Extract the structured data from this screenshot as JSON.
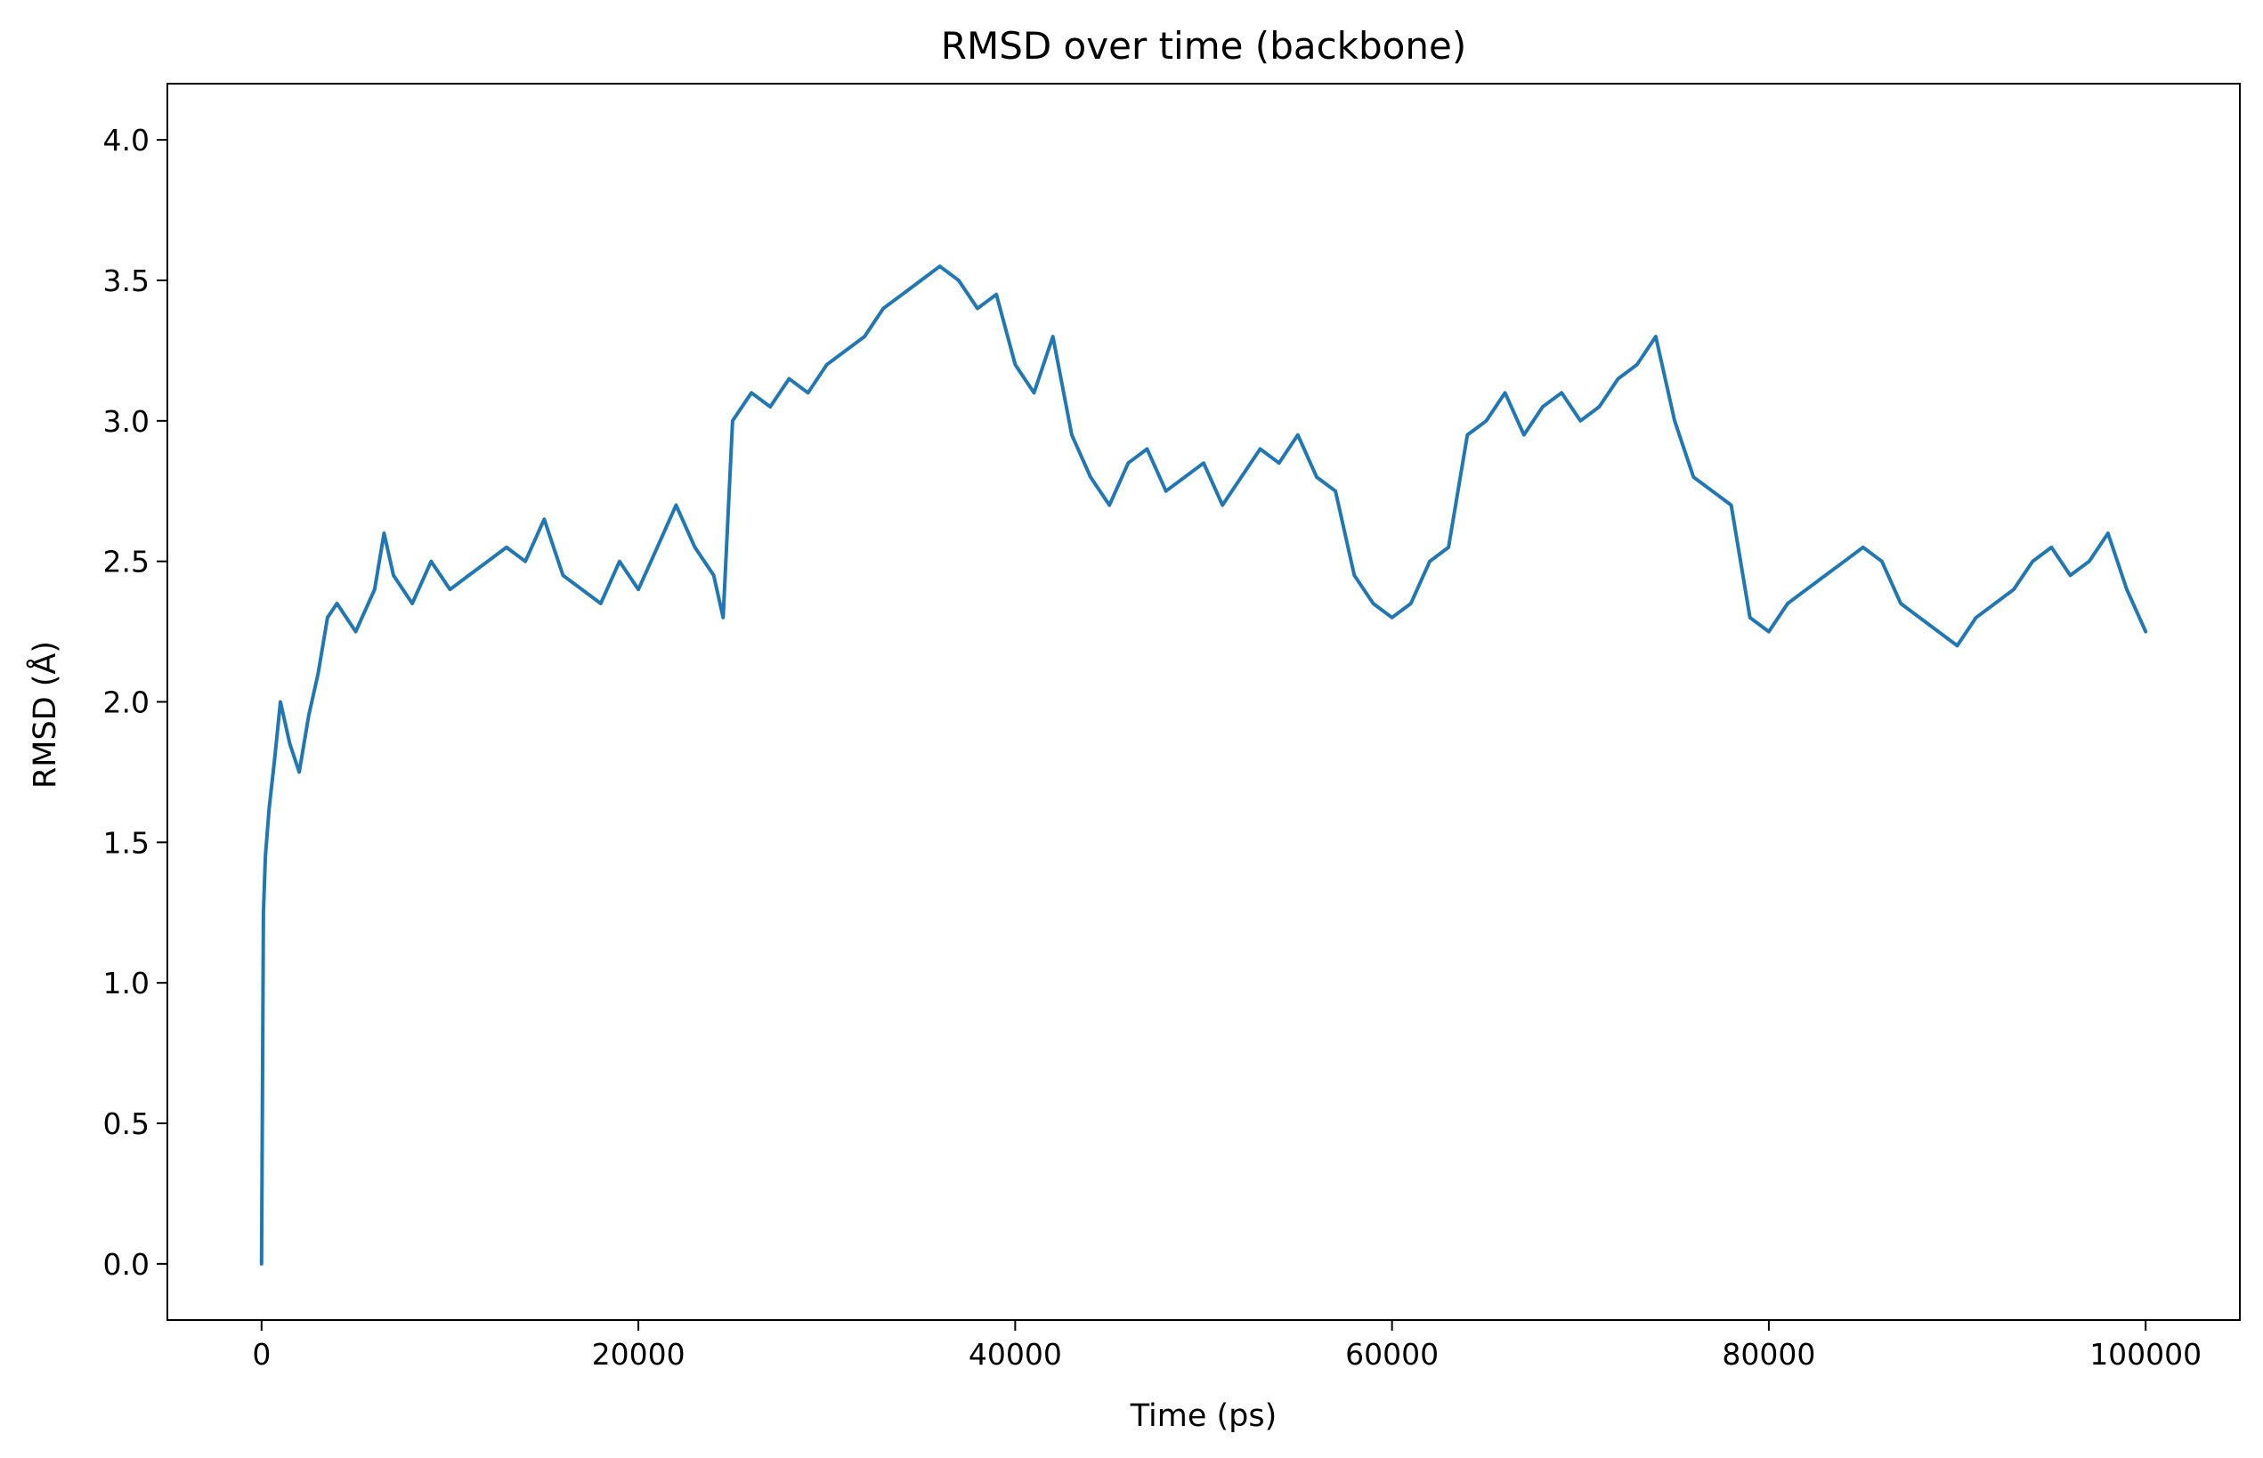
{
  "chart_data": {
    "type": "line",
    "title": "RMSD over time (backbone)",
    "xlabel": "Time (ps)",
    "ylabel": "RMSD (Å)",
    "xlim": [
      -5000,
      105000
    ],
    "ylim": [
      -0.2,
      4.2
    ],
    "x_ticks": [
      0,
      20000,
      40000,
      60000,
      80000,
      100000
    ],
    "x_tick_labels": [
      "0",
      "20000",
      "40000",
      "60000",
      "80000",
      "100000"
    ],
    "y_ticks": [
      0.0,
      0.5,
      1.0,
      1.5,
      2.0,
      2.5,
      3.0,
      3.5,
      4.0
    ],
    "y_tick_labels": [
      "0.0",
      "0.5",
      "1.0",
      "1.5",
      "2.0",
      "2.5",
      "3.0",
      "3.5",
      "4.0"
    ],
    "grid": false,
    "series": [
      {
        "color": "#1f77b4",
        "x": [
          0,
          100,
          200,
          400,
          700,
          1000,
          1500,
          2000,
          2500,
          3000,
          3500,
          4000,
          5000,
          6000,
          6500,
          7000,
          8000,
          9000,
          10000,
          11000,
          12000,
          13000,
          14000,
          15000,
          16000,
          17000,
          18000,
          19000,
          20000,
          21000,
          22000,
          23000,
          24000,
          24500,
          25000,
          26000,
          27000,
          28000,
          29000,
          30000,
          31000,
          32000,
          33000,
          34000,
          35000,
          36000,
          37000,
          38000,
          39000,
          40000,
          41000,
          42000,
          43000,
          44000,
          45000,
          46000,
          47000,
          48000,
          49000,
          50000,
          51000,
          52000,
          53000,
          54000,
          55000,
          56000,
          57000,
          58000,
          59000,
          60000,
          61000,
          62000,
          63000,
          64000,
          65000,
          66000,
          67000,
          68000,
          69000,
          70000,
          71000,
          72000,
          73000,
          74000,
          75000,
          76000,
          77000,
          78000,
          79000,
          80000,
          81000,
          82000,
          83000,
          84000,
          85000,
          86000,
          87000,
          88000,
          89000,
          90000,
          91000,
          92000,
          93000,
          94000,
          95000,
          96000,
          97000,
          98000,
          99000,
          100000
        ],
        "y": [
          0.0,
          1.25,
          1.45,
          1.62,
          1.8,
          2.0,
          1.85,
          1.75,
          1.95,
          2.1,
          2.3,
          2.35,
          2.25,
          2.4,
          2.6,
          2.45,
          2.35,
          2.5,
          2.4,
          2.45,
          2.5,
          2.55,
          2.5,
          2.65,
          2.45,
          2.4,
          2.35,
          2.5,
          2.4,
          2.55,
          2.7,
          2.55,
          2.45,
          2.3,
          3.0,
          3.1,
          3.05,
          3.15,
          3.1,
          3.2,
          3.25,
          3.3,
          3.4,
          3.45,
          3.5,
          3.55,
          3.5,
          3.4,
          3.45,
          3.2,
          3.1,
          3.3,
          2.95,
          2.8,
          2.7,
          2.85,
          2.9,
          2.75,
          2.8,
          2.85,
          2.7,
          2.8,
          2.9,
          2.85,
          2.95,
          2.8,
          2.75,
          2.45,
          2.35,
          2.3,
          2.35,
          2.5,
          2.55,
          2.95,
          3.0,
          3.1,
          2.95,
          3.05,
          3.1,
          3.0,
          3.05,
          3.15,
          3.2,
          3.3,
          3.0,
          2.8,
          2.75,
          2.7,
          2.3,
          2.25,
          2.35,
          2.4,
          2.45,
          2.5,
          2.55,
          2.5,
          2.35,
          2.3,
          2.25,
          2.2,
          2.3,
          2.35,
          2.4,
          2.5,
          2.55,
          2.45,
          2.5,
          2.6,
          2.4,
          2.25
        ]
      }
    ]
  }
}
